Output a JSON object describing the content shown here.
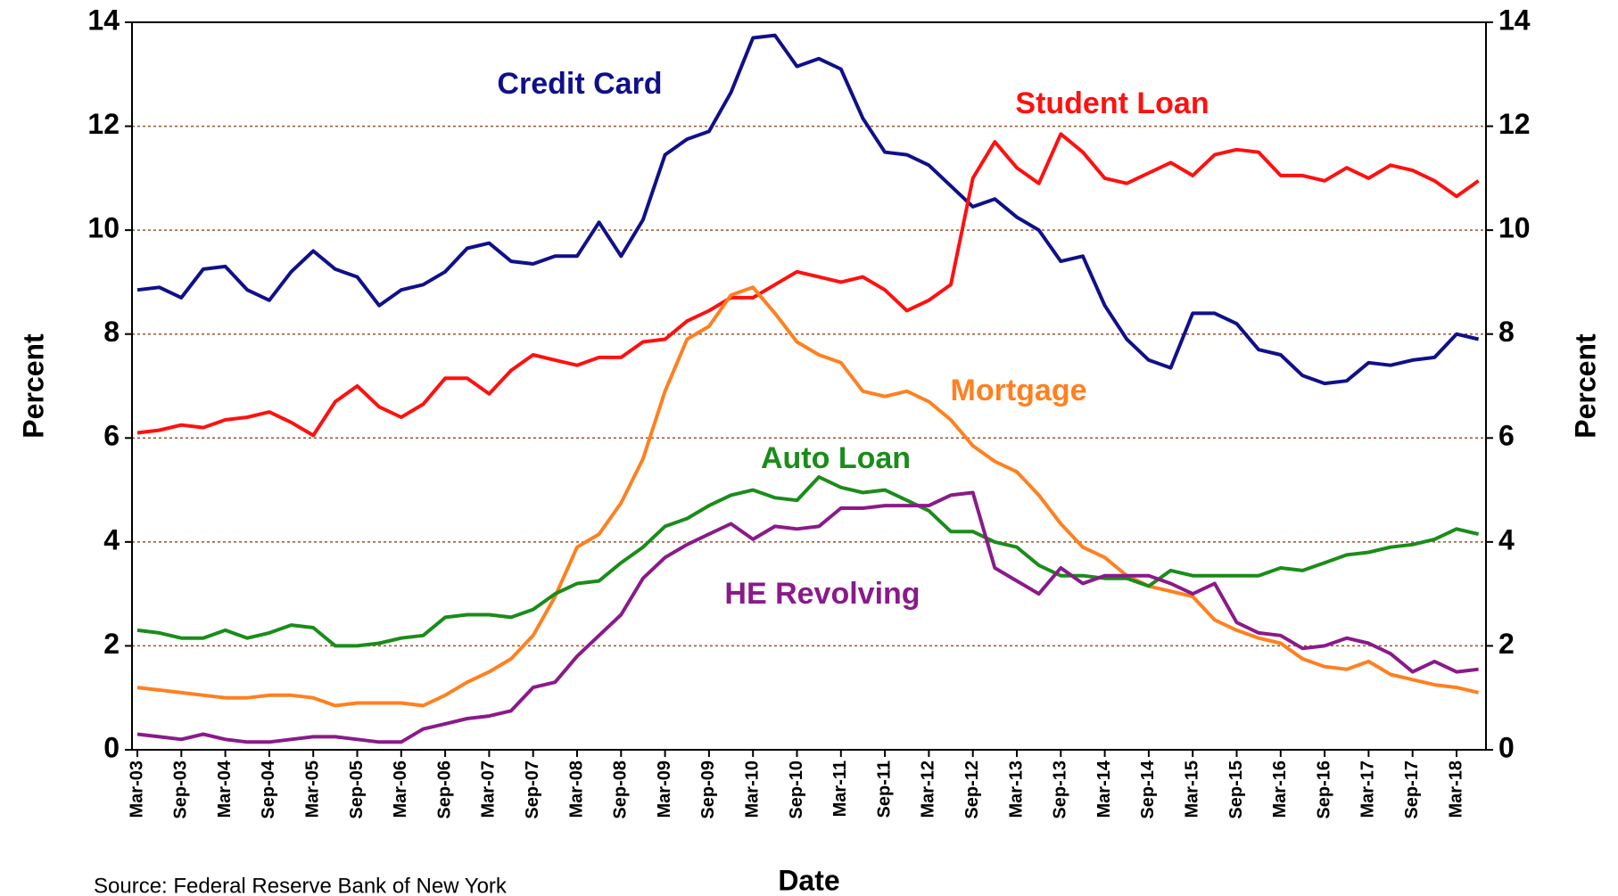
{
  "chart_data": {
    "type": "line",
    "xlabel": "Date",
    "ylabel": "Percent",
    "y2label": "Percent",
    "source": "Source: Federal Reserve Bank of New York",
    "categories": [
      "Mar-03",
      null,
      "Sep-03",
      null,
      "Mar-04",
      null,
      "Sep-04",
      null,
      "Mar-05",
      null,
      "Sep-05",
      null,
      "Mar-06",
      null,
      "Sep-06",
      null,
      "Mar-07",
      null,
      "Sep-07",
      null,
      "Mar-08",
      null,
      "Sep-08",
      null,
      "Mar-09",
      null,
      "Sep-09",
      null,
      "Mar-10",
      null,
      "Sep-10",
      null,
      "Mar-11",
      null,
      "Sep-11",
      null,
      "Mar-12",
      null,
      "Sep-12",
      null,
      "Mar-13",
      null,
      "Sep-13",
      null,
      "Mar-14",
      null,
      "Sep-14",
      null,
      "Mar-15",
      null,
      "Sep-15",
      null,
      "Mar-16",
      null,
      "Sep-16",
      null,
      "Mar-17",
      null,
      "Sep-17",
      null,
      "Mar-18",
      null
    ],
    "ylim": [
      0,
      14
    ],
    "yticks": [
      0,
      2,
      4,
      6,
      8,
      10,
      12,
      14
    ],
    "y2lim": [
      0,
      14
    ],
    "y2ticks": [
      0,
      2,
      4,
      6,
      8,
      10,
      12,
      14
    ],
    "grid": true,
    "series": [
      {
        "name": "Credit Card",
        "color": "#10108a",
        "values": [
          8.85,
          8.9,
          8.7,
          9.25,
          9.3,
          8.85,
          8.65,
          9.2,
          9.6,
          9.25,
          9.1,
          8.55,
          8.85,
          8.95,
          9.2,
          9.65,
          9.75,
          9.4,
          9.35,
          9.5,
          9.5,
          10.15,
          9.5,
          10.2,
          11.45,
          11.75,
          11.9,
          12.65,
          13.7,
          13.75,
          13.15,
          13.3,
          13.1,
          12.15,
          11.5,
          11.45,
          11.25,
          10.85,
          10.45,
          10.6,
          10.25,
          10.0,
          9.4,
          9.5,
          8.55,
          7.9,
          7.5,
          7.35,
          8.4,
          8.4,
          8.2,
          7.7,
          7.6,
          7.2,
          7.05,
          7.1,
          7.45,
          7.4,
          7.5,
          7.55,
          8.0,
          7.9
        ]
      },
      {
        "name": "Student Loan",
        "color": "#ff1010",
        "values": [
          6.1,
          6.15,
          6.25,
          6.2,
          6.35,
          6.4,
          6.5,
          6.3,
          6.05,
          6.7,
          7.0,
          6.6,
          6.4,
          6.65,
          7.15,
          7.15,
          6.85,
          7.3,
          7.6,
          7.5,
          7.4,
          7.55,
          7.55,
          7.85,
          7.9,
          8.25,
          8.45,
          8.7,
          8.7,
          8.95,
          9.2,
          9.1,
          9.0,
          9.1,
          8.85,
          8.45,
          8.65,
          8.95,
          11.0,
          11.7,
          11.2,
          10.9,
          11.85,
          11.5,
          11.0,
          10.9,
          11.1,
          11.3,
          11.05,
          11.45,
          11.55,
          11.5,
          11.05,
          11.05,
          10.95,
          11.2,
          11.0,
          11.25,
          11.15,
          10.95,
          10.65,
          10.95
        ]
      },
      {
        "name": "Mortgage",
        "color": "#ff8020",
        "values": [
          1.2,
          1.15,
          1.1,
          1.05,
          1.0,
          1.0,
          1.05,
          1.05,
          1.0,
          0.85,
          0.9,
          0.9,
          0.9,
          0.85,
          1.05,
          1.3,
          1.5,
          1.75,
          2.2,
          2.95,
          3.9,
          4.15,
          4.75,
          5.6,
          6.9,
          7.9,
          8.15,
          8.75,
          8.9,
          8.4,
          7.85,
          7.6,
          7.45,
          6.9,
          6.8,
          6.9,
          6.7,
          6.35,
          5.85,
          5.55,
          5.35,
          4.9,
          4.35,
          3.9,
          3.7,
          3.35,
          3.15,
          3.05,
          2.95,
          2.5,
          2.3,
          2.15,
          2.05,
          1.75,
          1.6,
          1.55,
          1.7,
          1.45,
          1.35,
          1.25,
          1.2,
          1.1
        ]
      },
      {
        "name": "Auto Loan",
        "color": "#1a8c1a",
        "values": [
          2.3,
          2.25,
          2.15,
          2.15,
          2.3,
          2.15,
          2.25,
          2.4,
          2.35,
          2.0,
          2.0,
          2.05,
          2.15,
          2.2,
          2.55,
          2.6,
          2.6,
          2.55,
          2.7,
          3.0,
          3.2,
          3.25,
          3.6,
          3.9,
          4.3,
          4.45,
          4.7,
          4.9,
          5.0,
          4.85,
          4.8,
          5.25,
          5.05,
          4.95,
          5.0,
          4.8,
          4.6,
          4.2,
          4.2,
          4.0,
          3.9,
          3.55,
          3.35,
          3.35,
          3.3,
          3.3,
          3.15,
          3.45,
          3.35,
          3.35,
          3.35,
          3.35,
          3.5,
          3.45,
          3.6,
          3.75,
          3.8,
          3.9,
          3.95,
          4.05,
          4.25,
          4.15
        ]
      },
      {
        "name": "HE Revolving",
        "color": "#8a1a8a",
        "values": [
          0.3,
          0.25,
          0.2,
          0.3,
          0.2,
          0.15,
          0.15,
          0.2,
          0.25,
          0.25,
          0.2,
          0.15,
          0.15,
          0.4,
          0.5,
          0.6,
          0.65,
          0.75,
          1.2,
          1.3,
          1.8,
          2.2,
          2.6,
          3.3,
          3.7,
          3.95,
          4.15,
          4.35,
          4.05,
          4.3,
          4.25,
          4.3,
          4.65,
          4.65,
          4.7,
          4.7,
          4.7,
          4.9,
          4.95,
          3.5,
          3.25,
          3.0,
          3.5,
          3.2,
          3.35,
          3.35,
          3.35,
          3.2,
          3.0,
          3.2,
          2.45,
          2.25,
          2.2,
          1.95,
          2.0,
          2.15,
          2.05,
          1.85,
          1.5,
          1.7,
          1.5,
          1.55
        ]
      }
    ]
  }
}
